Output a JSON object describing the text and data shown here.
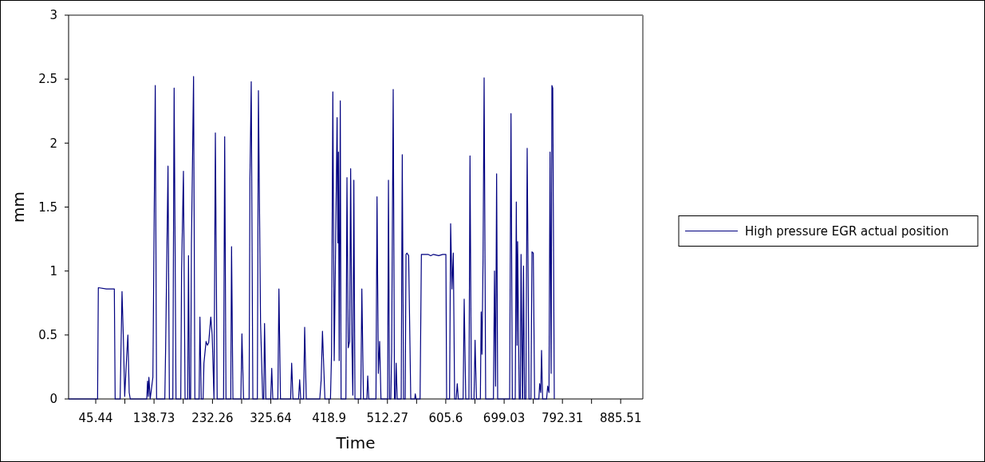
{
  "chart_data": {
    "type": "line",
    "xlabel": "Time",
    "ylabel": "mm",
    "legend": "right",
    "grid": false,
    "xlim": [
      2,
      921
    ],
    "ylim": [
      0,
      3
    ],
    "xticks": [
      45.44,
      {
        "value": 92.085,
        "label": null
      },
      138.73,
      {
        "value": 185.495,
        "label": null
      },
      232.26,
      {
        "value": 278.95,
        "label": null
      },
      325.64,
      {
        "value": 372.27,
        "label": null
      },
      418.9,
      {
        "value": 465.585,
        "label": null
      },
      512.27,
      {
        "value": 558.935,
        "label": null
      },
      605.6,
      {
        "value": 652.315,
        "label": null
      },
      699.03,
      {
        "value": 745.67,
        "label": null
      },
      792.31,
      {
        "value": 838.91,
        "label": null
      },
      885.51
    ],
    "yticks": [
      0,
      0.5,
      1,
      1.5,
      2,
      2.5,
      3
    ],
    "series": [
      {
        "name": "High pressure EGR actual position",
        "color": "#000080",
        "x": [
          2,
          48.4,
          49.6,
          62.4,
          75.2,
          76.5,
          84.5,
          87.5,
          89.6,
          91.8,
          94.8,
          96.9,
          99.0,
          100.7,
          127.1,
          128.4,
          129.6,
          130.5,
          132.6,
          136.9,
          140.7,
          142.8,
          156.0,
          157.3,
          161.1,
          163.3,
          168.8,
          170.9,
          173.9,
          181.5,
          182.8,
          185.8,
          188.4,
          192.6,
          193.9,
          195.6,
          197.3,
          198.6,
          202.0,
          204.1,
          210.9,
          212.2,
          214.3,
          217.3,
          218.6,
          222.0,
          224.1,
          226.2,
          229.6,
          231.8,
          234.7,
          236.9,
          239.8,
          250.0,
          251.8,
          253.9,
          261.5,
          262.8,
          265.0,
          277.7,
          279.4,
          282.0,
          290.9,
          292.2,
          294.3,
          296.9,
          304.1,
          305.8,
          309.2,
          312.6,
          314.3,
          315.6,
          317.7,
          325.4,
          327.1,
          328.8,
          336.9,
          338.6,
          341.1,
          357.3,
          359.0,
          361.1,
          370.0,
          371.8,
          373.5,
          378.1,
          379.8,
          382.4,
          404.0,
          406.2,
          408.3,
          412.2,
          421.1,
          422.8,
          424.9,
          427.1,
          428.3,
          431.7,
          433.0,
          433.9,
          435.1,
          436.8,
          438.1,
          445.8,
          447.5,
          449.6,
          451.7,
          453.4,
          455.1,
          456.9,
          458.5,
          460.3,
          469.6,
          471.3,
          473.9,
          479.4,
          480.7,
          482.4,
          493.9,
          495.6,
          497.7,
          499.8,
          501.9,
          512.6,
          513.9,
          515.6,
          517.7,
          519.0,
          521.5,
          523.6,
          524.9,
          526.2,
          527.9,
          534.3,
          536.0,
          538.1,
          540.7,
          542.0,
          543.6,
          546.2,
          549.6,
          556.0,
          556.8,
          558.1,
          564.5,
          566.6,
          577.3,
          581.5,
          585.8,
          594.3,
          600.7,
          605.8,
          607.0,
          611.7,
          613.4,
          615.5,
          617.7,
          619.8,
          622.3,
          624.0,
          625.7,
          633.4,
          635.1,
          637.6,
          642.7,
          644.4,
          646.6,
          650.8,
          652.5,
          654.7,
          661.0,
          662.3,
          663.6,
          665.3,
          667.0,
          669.5,
          681.9,
          683.6,
          685.3,
          687.0,
          688.7,
          707.8,
          710.0,
          712.1,
          716.8,
          718.5,
          719.7,
          720.6,
          723.2,
          724.9,
          726.1,
          728.3,
          728.7,
          730.0,
          731.7,
          733.8,
          735.9,
          738.9,
          741.9,
          743.6,
          745.7,
          747.8,
          754.6,
          755.9,
          757.6,
          758.9,
          760.6,
          767.0,
          768.7,
          770.8,
          772.5,
          774.2,
          775.5,
          776.8,
          779.3
        ],
        "values": [
          0,
          0,
          0.87,
          0.86,
          0.86,
          0,
          0,
          0.84,
          0.49,
          0.02,
          0.32,
          0.5,
          0.05,
          0,
          0,
          0.14,
          0.02,
          0.17,
          0,
          0.17,
          2.45,
          0,
          0,
          0.4,
          1.82,
          0,
          0,
          2.43,
          0,
          0,
          0.99,
          1.78,
          0,
          0,
          1.12,
          0,
          0,
          1.21,
          2.52,
          0,
          0,
          0.64,
          0,
          0,
          0.28,
          0.45,
          0.42,
          0.44,
          0.64,
          0.5,
          0,
          2.08,
          0,
          0,
          2.05,
          0,
          0,
          1.19,
          0,
          0,
          0.51,
          0,
          0,
          1.7,
          2.48,
          0,
          0,
          2.41,
          0.6,
          0,
          0,
          0.59,
          0,
          0,
          0.24,
          0,
          0,
          0.86,
          0,
          0,
          0.28,
          0,
          0,
          0.15,
          0,
          0,
          0.56,
          0,
          0,
          0.15,
          0.53,
          0,
          0,
          0.35,
          2.4,
          0.3,
          0.77,
          2.2,
          1.22,
          1.93,
          0.3,
          2.33,
          0,
          0,
          1.73,
          0.4,
          0.45,
          1.8,
          0.5,
          0.03,
          1.71,
          0,
          0,
          0.86,
          0,
          0,
          0.18,
          0,
          0,
          1.58,
          0.2,
          0.45,
          0,
          0,
          1.71,
          0,
          0,
          0.37,
          2.42,
          0,
          0,
          0.28,
          0,
          0,
          1.91,
          0,
          0,
          1.13,
          1.14,
          1.12,
          0,
          0,
          0.04,
          0,
          0,
          1.13,
          1.13,
          1.12,
          1.13,
          1.12,
          1.13,
          1.13,
          0,
          0,
          1.37,
          0.86,
          1.14,
          0,
          0,
          0.12,
          0,
          0,
          0.78,
          0,
          0,
          1.9,
          0,
          0,
          0.46,
          0,
          0,
          0.68,
          0.35,
          1.1,
          2.51,
          0,
          0,
          1.0,
          0.1,
          1.76,
          0,
          0,
          2.23,
          0,
          0,
          1.54,
          0.42,
          1.23,
          0,
          0,
          1.13,
          0,
          0,
          1.04,
          0,
          0,
          1.96,
          0,
          0,
          1.15,
          1.14,
          0,
          0,
          0.12,
          0.05,
          0.38,
          0,
          0,
          0.1,
          0.05,
          1.93,
          0.2,
          2.45,
          2.43,
          0
        ]
      }
    ]
  }
}
